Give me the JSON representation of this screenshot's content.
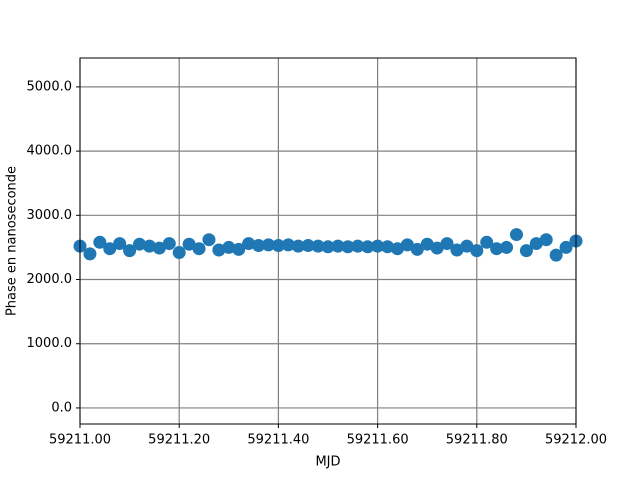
{
  "chart_data": {
    "type": "scatter",
    "x_label": "MJD",
    "y_label": "Phase en nanoseconde",
    "x": [
      59211.0,
      59211.02,
      59211.04,
      59211.06,
      59211.08,
      59211.1,
      59211.12,
      59211.14,
      59211.16,
      59211.18,
      59211.2,
      59211.22,
      59211.24,
      59211.26,
      59211.28,
      59211.3,
      59211.32,
      59211.34,
      59211.36,
      59211.38,
      59211.4,
      59211.42,
      59211.44,
      59211.46,
      59211.48,
      59211.5,
      59211.52,
      59211.54,
      59211.56,
      59211.58,
      59211.6,
      59211.62,
      59211.64,
      59211.66,
      59211.68,
      59211.7,
      59211.72,
      59211.74,
      59211.76,
      59211.78,
      59211.8,
      59211.82,
      59211.84,
      59211.86,
      59211.88,
      59211.9,
      59211.92,
      59211.94,
      59211.96,
      59211.98,
      59212.0
    ],
    "values": [
      2520,
      2400,
      2580,
      2480,
      2560,
      2450,
      2550,
      2520,
      2490,
      2560,
      2420,
      2550,
      2480,
      2620,
      2460,
      2500,
      2470,
      2560,
      2530,
      2540,
      2530,
      2540,
      2520,
      2530,
      2520,
      2510,
      2520,
      2510,
      2520,
      2510,
      2520,
      2510,
      2480,
      2540,
      2470,
      2550,
      2490,
      2560,
      2460,
      2520,
      2450,
      2580,
      2480,
      2500,
      2700,
      2450,
      2560,
      2620,
      2380,
      2500,
      2600
    ],
    "color": "#1f77b4",
    "xlim": [
      59211,
      59212
    ],
    "xticks": [
      {
        "value": 59211.0,
        "label": "59211.00"
      },
      {
        "value": 59211.2,
        "label": "59211.20"
      },
      {
        "value": 59211.4,
        "label": "59211.40"
      },
      {
        "value": 59211.6,
        "label": "59211.60"
      },
      {
        "value": 59211.8,
        "label": "59211.80"
      },
      {
        "value": 59212.0,
        "label": "59212.00"
      }
    ],
    "ylim": [
      -250,
      5450
    ],
    "yticks": [
      {
        "value": 0,
        "label": "0.0"
      },
      {
        "value": 1000,
        "label": "1000.0"
      },
      {
        "value": 2000,
        "label": "2000.0"
      },
      {
        "value": 3000,
        "label": "3000.0"
      },
      {
        "value": 4000,
        "label": "4000.0"
      },
      {
        "value": 5000,
        "label": "5000.0"
      }
    ],
    "grid": true
  }
}
